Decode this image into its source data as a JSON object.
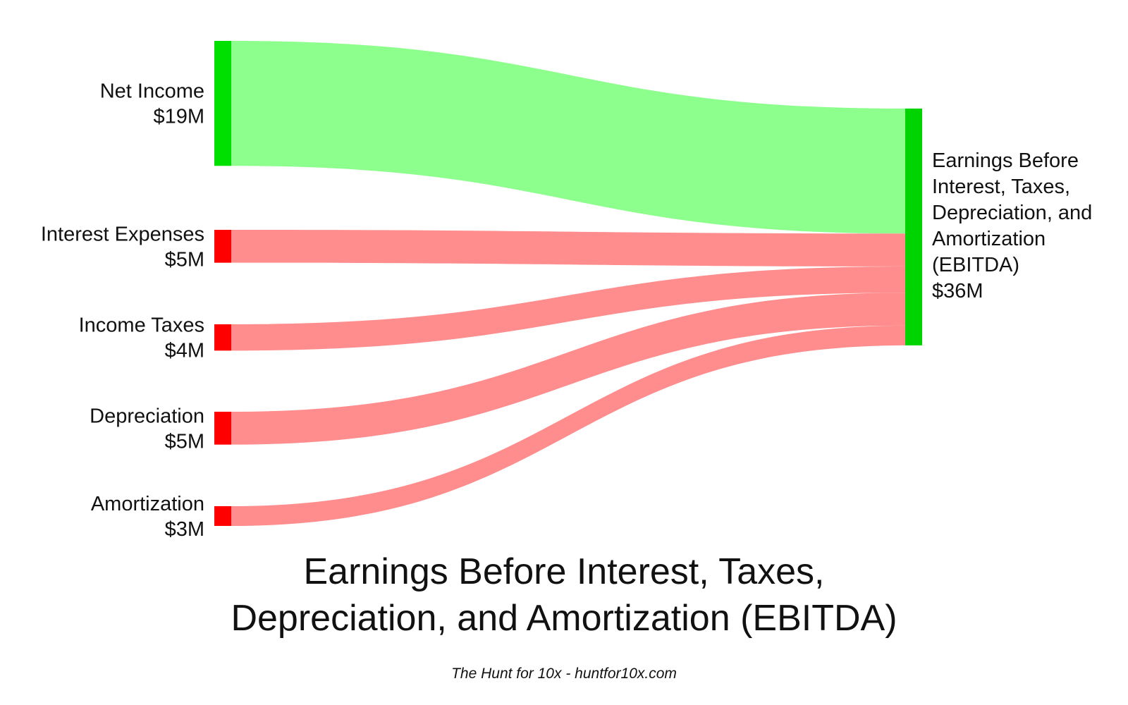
{
  "chart_data": {
    "type": "sankey",
    "unit": "$M",
    "sources": [
      {
        "id": "net-income",
        "label": "Net Income",
        "value_label": "$19M",
        "value": 19,
        "kind": "positive"
      },
      {
        "id": "interest-expenses",
        "label": "Interest Expenses",
        "value_label": "$5M",
        "value": 5,
        "kind": "expense"
      },
      {
        "id": "income-taxes",
        "label": "Income Taxes",
        "value_label": "$4M",
        "value": 4,
        "kind": "expense"
      },
      {
        "id": "depreciation",
        "label": "Depreciation",
        "value_label": "$5M",
        "value": 5,
        "kind": "expense"
      },
      {
        "id": "amortization",
        "label": "Amortization",
        "value_label": "$3M",
        "value": 3,
        "kind": "expense"
      }
    ],
    "target": {
      "id": "ebitda",
      "label_lines": [
        "Earnings Before",
        "Interest, Taxes,",
        "Depreciation, and",
        "Amortization",
        "(EBITDA)"
      ],
      "value_label": "$36M",
      "value": 36
    },
    "title_lines": [
      "Earnings Before Interest, Taxes,",
      "Depreciation, and Amortization (EBITDA)"
    ],
    "colors": {
      "positive_node": "#00e000",
      "positive_link": "#8dff8d",
      "expense_node": "#ff0000",
      "expense_link": "#ff8d8d",
      "target_node": "#00d400"
    }
  },
  "footer": {
    "credit": "The Hunt for 10x - huntfor10x.com"
  }
}
